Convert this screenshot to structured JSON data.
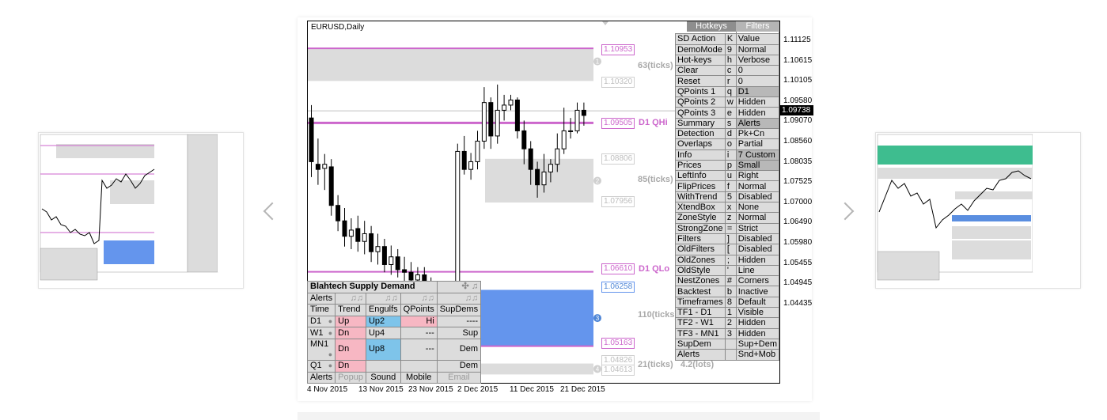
{
  "gallery": {
    "prev_label": "Previous image",
    "next_label": "Next image"
  },
  "chart": {
    "symbol": "EURUSD,Daily",
    "current_price": "1.09738",
    "price_ticks": [
      "1.11125",
      "1.10615",
      "1.10105",
      "1.09580",
      "1.09070",
      "1.08560",
      "1.08035",
      "1.07525",
      "1.07000",
      "1.06490",
      "1.05980",
      "1.05455",
      "1.04945",
      "1.04435"
    ],
    "date_ticks": [
      "4 Nov 2015",
      "13 Nov 2015",
      "23 Nov 2015",
      "2 Dec 2015",
      "11 Dec 2015",
      "21 Dec 2015"
    ],
    "zone_labels": {
      "z1_top": "1.10953",
      "z1_bottom": "1.10320",
      "z1_ticks": "63(ticks)",
      "qhi_price": "1.09505",
      "qhi_text": "D1 QHi",
      "z2_top": "1.08806",
      "z2_bottom": "1.07956",
      "z2_ticks": "85(ticks)",
      "qlo_price": "1.06610",
      "qlo_text": "D1 QLo",
      "z3_top": "1.06258",
      "z3_bottom": "1.05163",
      "z3_ticks": "110(ticks)",
      "z4_top": "1.04826",
      "z4_bottom": "1.04613",
      "z4_ticks": "21(ticks)",
      "z4_lots": "4.2(lots)",
      "badge1": "1",
      "badge2": "2",
      "badge3": "3",
      "badge4": "4"
    },
    "colors": {
      "supply_zone": "#dcdcdc",
      "demand_zone": "#6495ed",
      "qline": "#cc66cc"
    }
  },
  "hotkeys": {
    "tab_hotkeys": "Hotkeys",
    "tab_filters": "Filters",
    "rows": [
      [
        "SD Action",
        "K",
        "Value"
      ],
      [
        "DemoMode",
        "9",
        "Normal"
      ],
      [
        "Hot-keys",
        "h",
        "Verbose"
      ],
      [
        "Clear",
        "c",
        "0"
      ],
      [
        "Reset",
        "r",
        "0"
      ],
      [
        "QPoints 1",
        "q",
        "D1"
      ],
      [
        "QPoints 2",
        "w",
        "Hidden"
      ],
      [
        "QPoints 3",
        "e",
        "Hidden"
      ],
      [
        "Summary",
        "s",
        "Alerts"
      ],
      [
        "Detection",
        "d",
        "Pk+Cn"
      ],
      [
        "Overlaps",
        "o",
        "Partial"
      ],
      [
        "Info",
        "i",
        "7 Custom"
      ],
      [
        "Prices",
        "p",
        "Small"
      ],
      [
        "LeftInfo",
        "u",
        "Right"
      ],
      [
        "FlipPrices",
        "f",
        "Normal"
      ],
      [
        "WithTrend",
        "5",
        "Disabled"
      ],
      [
        "XtendBox",
        "x",
        "None"
      ],
      [
        "ZoneStyle",
        "z",
        "Normal"
      ],
      [
        "StrongZone",
        "=",
        "Strict"
      ],
      [
        "Filters",
        "]",
        "Disabled"
      ],
      [
        "OldFilters",
        "[",
        "Disabled"
      ],
      [
        "OldZones",
        ";",
        "Hidden"
      ],
      [
        "OldStyle",
        "'",
        "Line"
      ],
      [
        "NestZones",
        "#",
        "Corners"
      ],
      [
        "Backtest",
        "b",
        "Inactive"
      ],
      [
        "Timeframes",
        "8",
        "Default"
      ],
      [
        "TF1 - D1",
        "1",
        "Visible"
      ],
      [
        "TF2 - W1",
        "2",
        "Hidden"
      ],
      [
        "TF3 - MN1",
        "3",
        "Hidden"
      ],
      [
        "SupDem",
        "",
        "Sup+Dem"
      ],
      [
        "Alerts",
        "",
        "Snd+Mob"
      ]
    ]
  },
  "dashboard": {
    "title": "Blahtech Supply Demand",
    "header": [
      "Alerts",
      "♫♫",
      "♫♫",
      "♫♫",
      "♫♫"
    ],
    "columns": [
      "Time",
      "Trend",
      "Engulfs",
      "QPoints",
      "SupDems"
    ],
    "rows": [
      {
        "tf": "D1",
        "trend": "Up",
        "engulf": "Up2",
        "qpoint": "Hi",
        "supdem": "----"
      },
      {
        "tf": "W1",
        "trend": "Dn",
        "engulf": "Up4",
        "qpoint": "---",
        "supdem": "Sup"
      },
      {
        "tf": "MN1",
        "trend": "Dn",
        "engulf": "Up8",
        "qpoint": "---",
        "supdem": "Dem"
      },
      {
        "tf": "Q1",
        "trend": "Dn",
        "engulf": "",
        "qpoint": "",
        "supdem": "Dem"
      }
    ],
    "footer": [
      "Alerts",
      "Popup",
      "Sound",
      "Mobile",
      "Email"
    ]
  }
}
